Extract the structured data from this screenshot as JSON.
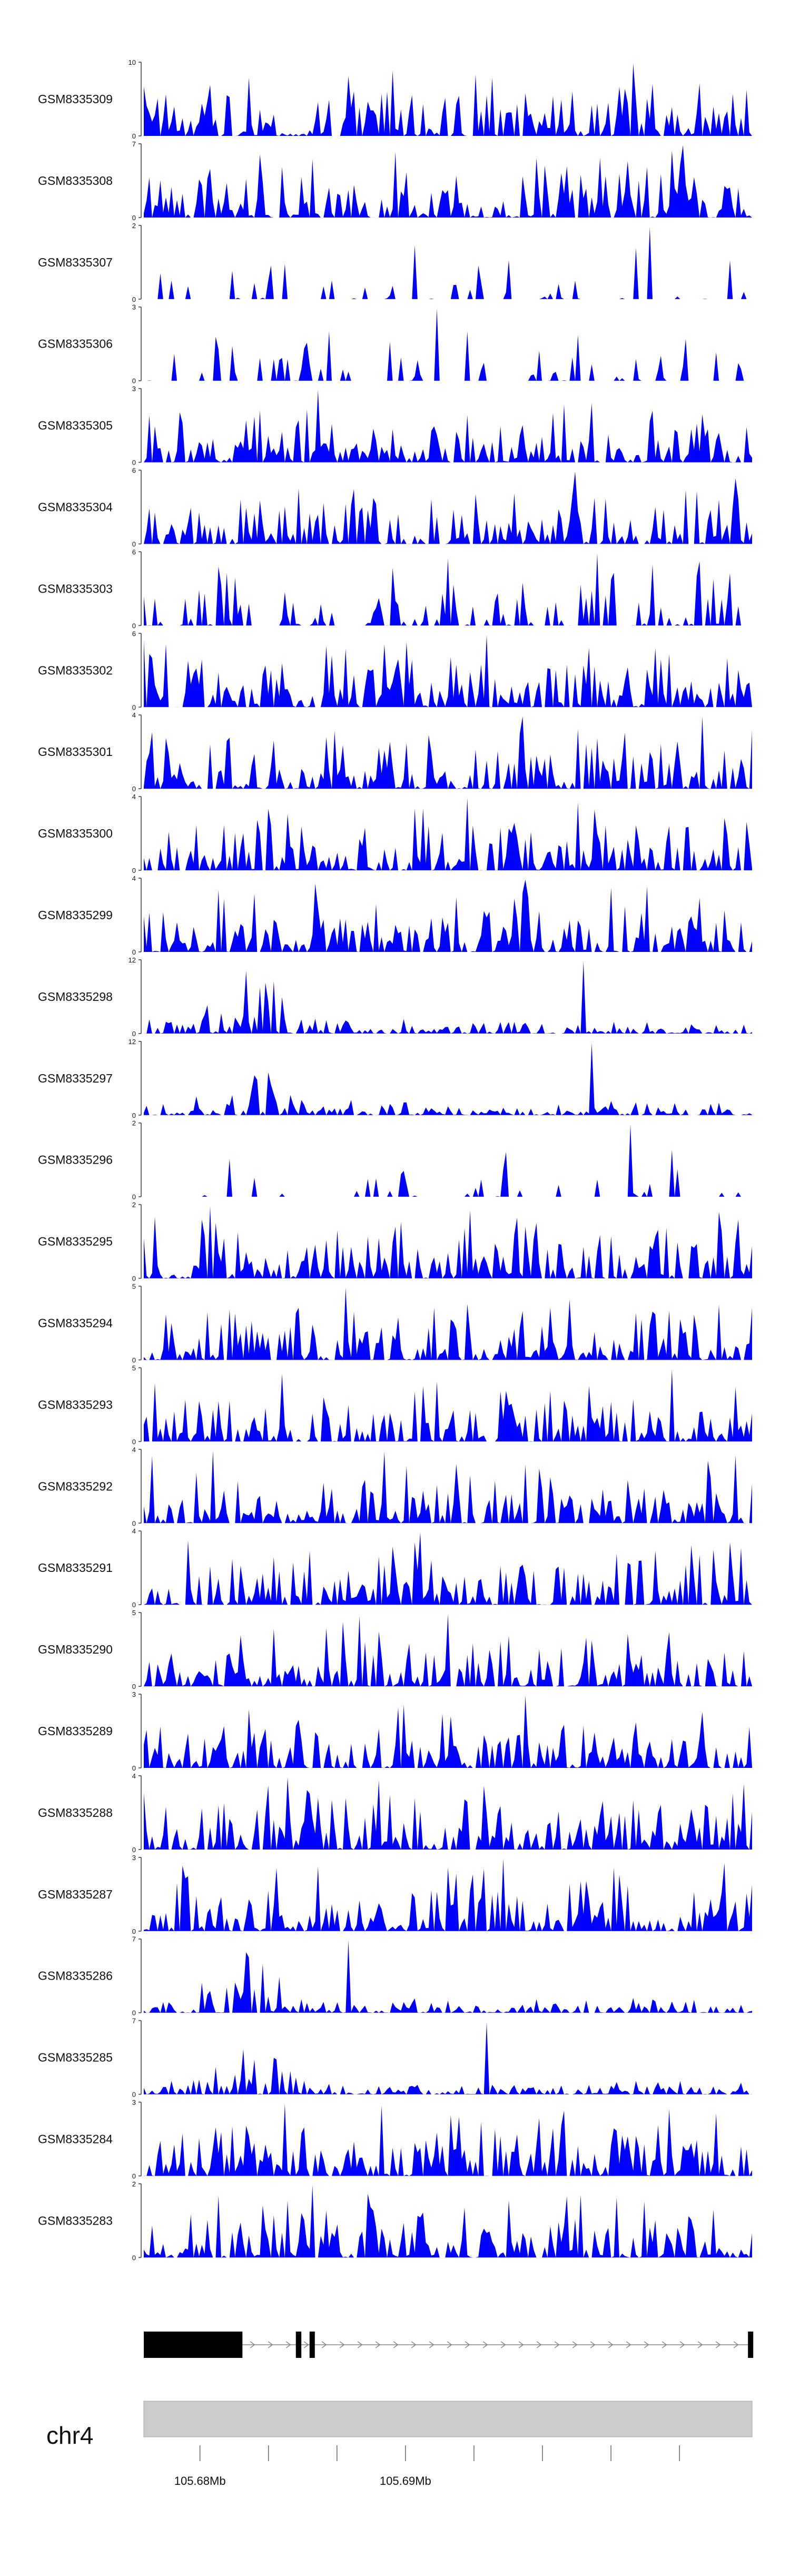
{
  "chart_data": {
    "type": "area",
    "series_color": "#0000ff",
    "tracks": [
      {
        "name": "GSM8335309",
        "ymax": 10,
        "ylim": [
          0,
          10
        ]
      },
      {
        "name": "GSM8335308",
        "ymax": 7,
        "ylim": [
          0,
          7
        ]
      },
      {
        "name": "GSM8335307",
        "ymax": 2,
        "ylim": [
          0,
          2
        ]
      },
      {
        "name": "GSM8335306",
        "ymax": 3,
        "ylim": [
          0,
          3
        ]
      },
      {
        "name": "GSM8335305",
        "ymax": 3,
        "ylim": [
          0,
          3
        ]
      },
      {
        "name": "GSM8335304",
        "ymax": 6,
        "ylim": [
          0,
          6
        ]
      },
      {
        "name": "GSM8335303",
        "ymax": 6,
        "ylim": [
          0,
          6
        ]
      },
      {
        "name": "GSM8335302",
        "ymax": 6,
        "ylim": [
          0,
          6
        ]
      },
      {
        "name": "GSM8335301",
        "ymax": 4,
        "ylim": [
          0,
          4
        ]
      },
      {
        "name": "GSM8335300",
        "ymax": 4,
        "ylim": [
          0,
          4
        ]
      },
      {
        "name": "GSM8335299",
        "ymax": 4,
        "ylim": [
          0,
          4
        ]
      },
      {
        "name": "GSM8335298",
        "ymax": 12,
        "ylim": [
          0,
          12
        ]
      },
      {
        "name": "GSM8335297",
        "ymax": 12,
        "ylim": [
          0,
          12
        ]
      },
      {
        "name": "GSM8335296",
        "ymax": 2,
        "ylim": [
          0,
          2
        ]
      },
      {
        "name": "GSM8335295",
        "ymax": 2,
        "ylim": [
          0,
          2
        ]
      },
      {
        "name": "GSM8335294",
        "ymax": 5,
        "ylim": [
          0,
          5
        ]
      },
      {
        "name": "GSM8335293",
        "ymax": 5,
        "ylim": [
          0,
          5
        ]
      },
      {
        "name": "GSM8335292",
        "ymax": 4,
        "ylim": [
          0,
          4
        ]
      },
      {
        "name": "GSM8335291",
        "ymax": 4,
        "ylim": [
          0,
          4
        ]
      },
      {
        "name": "GSM8335290",
        "ymax": 5,
        "ylim": [
          0,
          5
        ]
      },
      {
        "name": "GSM8335289",
        "ymax": 3,
        "ylim": [
          0,
          3
        ]
      },
      {
        "name": "GSM8335288",
        "ymax": 4,
        "ylim": [
          0,
          4
        ]
      },
      {
        "name": "GSM8335287",
        "ymax": 3,
        "ylim": [
          0,
          3
        ]
      },
      {
        "name": "GSM8335286",
        "ymax": 7,
        "ylim": [
          0,
          7
        ]
      },
      {
        "name": "GSM8335285",
        "ymax": 7,
        "ylim": [
          0,
          7
        ]
      },
      {
        "name": "GSM8335284",
        "ymax": 3,
        "ylim": [
          0,
          3
        ]
      },
      {
        "name": "GSM8335283",
        "ymax": 2,
        "ylim": [
          0,
          2
        ]
      }
    ],
    "gene_model": {
      "strand": "+",
      "exons": [
        [
          105.6739,
          105.6811
        ],
        [
          105.685,
          105.6854
        ],
        [
          105.686,
          105.6863
        ],
        [
          105.718,
          105.7183
        ]
      ],
      "intron_span": [
        105.6739,
        105.7183
      ]
    },
    "ideogram": {
      "chromosome": "chr4",
      "region": [
        105.6739,
        105.7183
      ],
      "ticks": [
        105.678,
        105.683,
        105.688,
        105.693,
        105.698,
        105.703,
        105.708,
        105.713
      ],
      "labeled_ticks": [
        {
          "value": 105.678,
          "label": "105.68Mb"
        },
        {
          "value": 105.693,
          "label": "105.69Mb"
        }
      ]
    }
  }
}
